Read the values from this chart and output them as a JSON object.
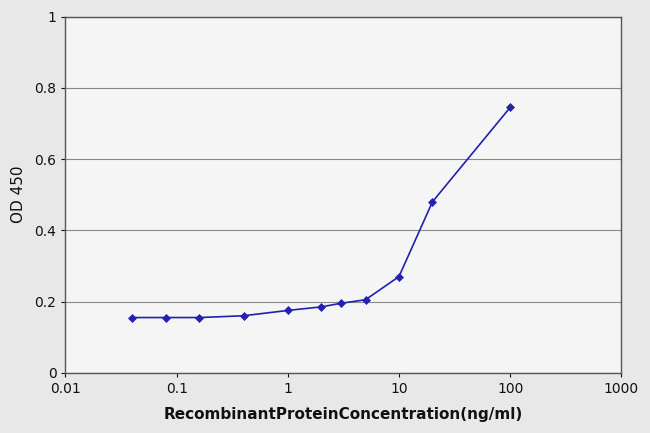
{
  "x_values": [
    0.04,
    0.08,
    0.16,
    0.4,
    1.0,
    2.0,
    3.0,
    5.0,
    10.0,
    20.0,
    100.0
  ],
  "y_values": [
    0.155,
    0.155,
    0.155,
    0.16,
    0.175,
    0.185,
    0.195,
    0.205,
    0.27,
    0.48,
    0.745
  ],
  "line_color": "#2222aa",
  "marker_color": "#2222aa",
  "marker": "D",
  "marker_size": 4,
  "line_width": 1.2,
  "xlabel": "RecombinantProteinConcentration(ng/ml)",
  "ylabel": "OD 450",
  "xlim": [
    0.01,
    1000
  ],
  "ylim": [
    0,
    1
  ],
  "yticks": [
    0,
    0.2,
    0.4,
    0.6,
    0.8,
    1.0
  ],
  "ytick_labels": [
    "0",
    "0.2",
    "0.4",
    "0.6",
    "0.8",
    "1"
  ],
  "xtick_values": [
    0.01,
    0.1,
    1,
    10,
    100,
    1000
  ],
  "xtick_labels": [
    "0.01",
    "0.1",
    "1",
    "10",
    "100",
    "1000"
  ],
  "background_color": "#e8e8e8",
  "plot_bg_color": "#f5f5f5",
  "grid_color": "#888888",
  "spine_color": "#555555",
  "text_color": "#111111",
  "xlabel_fontsize": 11,
  "ylabel_fontsize": 11,
  "tick_fontsize": 10
}
